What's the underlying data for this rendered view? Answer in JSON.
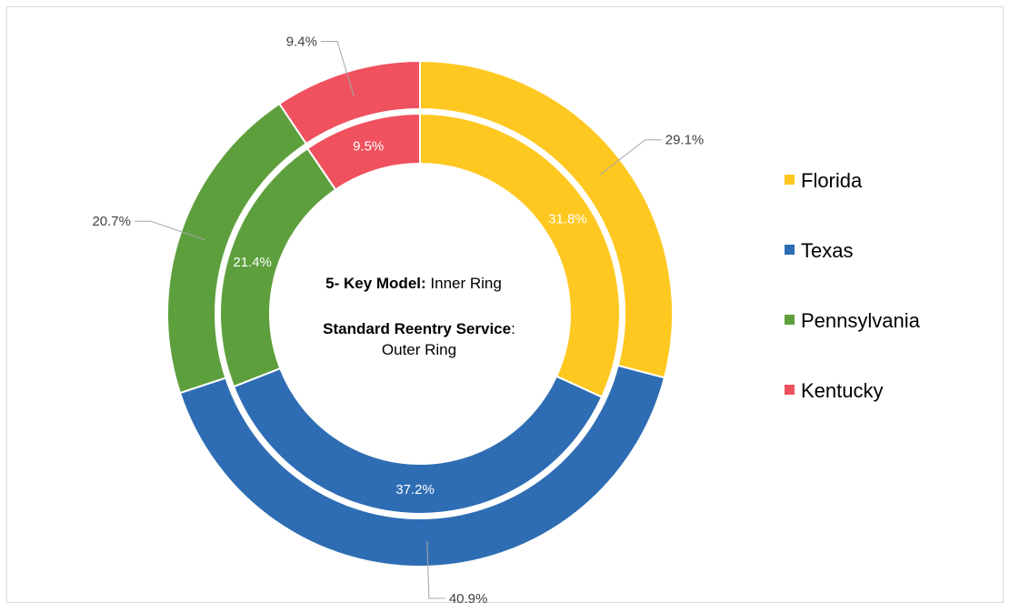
{
  "chart_data": {
    "type": "pie",
    "subtype": "donut-nested",
    "categories": [
      "Florida",
      "Texas",
      "Pennsylvania",
      "Kentucky"
    ],
    "colors": {
      "Florida": "#FFC820",
      "Texas": "#2E6DB4",
      "Pennsylvania": "#5E9F3D",
      "Kentucky": "#F0515F"
    },
    "series": [
      {
        "ring": "outer",
        "values": [
          29.1,
          40.9,
          20.7,
          9.4
        ],
        "labels": [
          "29.1%",
          "40.9%",
          "20.7%",
          "9.4%"
        ]
      },
      {
        "ring": "inner",
        "values": [
          31.8,
          37.2,
          21.4,
          9.5
        ],
        "labels": [
          "31.8%",
          "37.2%",
          "21.4%",
          "9.5%"
        ]
      }
    ],
    "center_text": {
      "line1_bold": "5- Key Model:",
      "line1_rest": " Inner Ring",
      "line2_bold": "Standard Reentry Service",
      "line2_rest": ":",
      "line3": "Outer Ring"
    },
    "legend": {
      "placement": "right",
      "entries": [
        "Florida",
        "Texas",
        "Pennsylvania",
        "Kentucky"
      ]
    }
  }
}
